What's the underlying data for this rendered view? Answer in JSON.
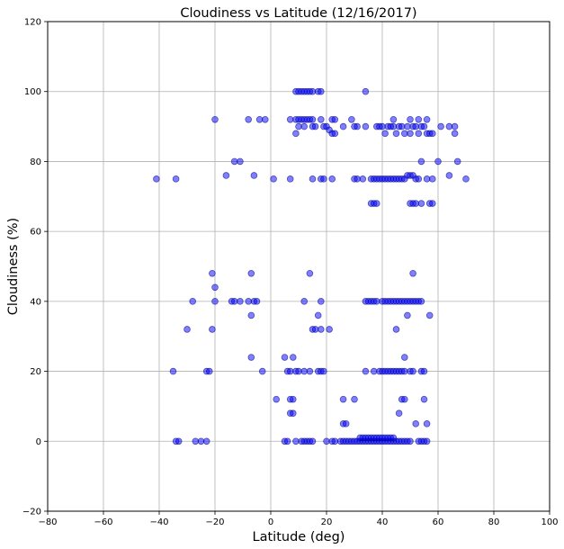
{
  "chart_data": {
    "type": "scatter",
    "title": "Cloudiness vs Latitude (12/16/2017)",
    "xlabel": "Latitude (deg)",
    "ylabel": "Cloudiness (%)",
    "xlim": [
      -80,
      100
    ],
    "ylim": [
      -20,
      120
    ],
    "xticks": [
      -80,
      -60,
      -40,
      -20,
      0,
      20,
      40,
      60,
      80,
      100
    ],
    "yticks": [
      -20,
      0,
      20,
      40,
      60,
      80,
      100,
      120
    ],
    "grid": true,
    "colors": {
      "marker_fill": "#0000ff",
      "marker_edge": "#00008b",
      "grid": "#b0b0b0",
      "axis": "#000000"
    },
    "series": [
      {
        "points": [
          [
            9,
            100
          ],
          [
            10,
            100
          ],
          [
            11,
            100
          ],
          [
            12,
            100
          ],
          [
            13,
            100
          ],
          [
            14,
            100
          ],
          [
            15,
            100
          ],
          [
            17,
            100
          ],
          [
            18,
            100
          ],
          [
            34,
            100
          ],
          [
            -20,
            92
          ],
          [
            -8,
            92
          ],
          [
            -4,
            92
          ],
          [
            -2,
            92
          ],
          [
            7,
            92
          ],
          [
            9,
            92
          ],
          [
            10,
            92
          ],
          [
            11,
            92
          ],
          [
            12,
            92
          ],
          [
            13,
            92
          ],
          [
            14,
            92
          ],
          [
            15,
            92
          ],
          [
            18,
            92
          ],
          [
            22,
            92
          ],
          [
            23,
            92
          ],
          [
            29,
            92
          ],
          [
            44,
            92
          ],
          [
            50,
            92
          ],
          [
            53,
            92
          ],
          [
            56,
            92
          ],
          [
            9,
            88
          ],
          [
            10,
            90
          ],
          [
            12,
            90
          ],
          [
            15,
            90
          ],
          [
            16,
            90
          ],
          [
            19,
            90
          ],
          [
            20,
            90
          ],
          [
            21,
            89
          ],
          [
            22,
            88
          ],
          [
            23,
            88
          ],
          [
            26,
            90
          ],
          [
            30,
            90
          ],
          [
            31,
            90
          ],
          [
            34,
            90
          ],
          [
            38,
            90
          ],
          [
            39,
            90
          ],
          [
            40,
            90
          ],
          [
            41,
            88
          ],
          [
            42,
            90
          ],
          [
            43,
            90
          ],
          [
            44,
            90
          ],
          [
            45,
            88
          ],
          [
            46,
            90
          ],
          [
            47,
            90
          ],
          [
            48,
            88
          ],
          [
            49,
            90
          ],
          [
            50,
            88
          ],
          [
            51,
            90
          ],
          [
            52,
            90
          ],
          [
            53,
            88
          ],
          [
            54,
            90
          ],
          [
            55,
            90
          ],
          [
            56,
            88
          ],
          [
            57,
            88
          ],
          [
            58,
            88
          ],
          [
            61,
            90
          ],
          [
            64,
            90
          ],
          [
            66,
            88
          ],
          [
            66,
            90
          ],
          [
            -16,
            76
          ],
          [
            -13,
            80
          ],
          [
            -11,
            80
          ],
          [
            -6,
            76
          ],
          [
            1,
            75
          ],
          [
            7,
            75
          ],
          [
            15,
            75
          ],
          [
            18,
            75
          ],
          [
            19,
            75
          ],
          [
            22,
            75
          ],
          [
            30,
            75
          ],
          [
            31,
            75
          ],
          [
            33,
            75
          ],
          [
            36,
            75
          ],
          [
            37,
            75
          ],
          [
            38,
            75
          ],
          [
            39,
            75
          ],
          [
            40,
            75
          ],
          [
            41,
            75
          ],
          [
            42,
            75
          ],
          [
            43,
            75
          ],
          [
            44,
            75
          ],
          [
            45,
            75
          ],
          [
            46,
            75
          ],
          [
            47,
            75
          ],
          [
            48,
            75
          ],
          [
            49,
            76
          ],
          [
            50,
            76
          ],
          [
            51,
            76
          ],
          [
            52,
            75
          ],
          [
            53,
            75
          ],
          [
            54,
            80
          ],
          [
            56,
            75
          ],
          [
            58,
            75
          ],
          [
            60,
            80
          ],
          [
            64,
            76
          ],
          [
            67,
            80
          ],
          [
            70,
            75
          ],
          [
            -41,
            75
          ],
          [
            -34,
            75
          ],
          [
            36,
            68
          ],
          [
            37,
            68
          ],
          [
            38,
            68
          ],
          [
            50,
            68
          ],
          [
            51,
            68
          ],
          [
            52,
            68
          ],
          [
            54,
            68
          ],
          [
            57,
            68
          ],
          [
            58,
            68
          ],
          [
            -21,
            48
          ],
          [
            -7,
            48
          ],
          [
            14,
            48
          ],
          [
            51,
            48
          ],
          [
            -20,
            44
          ],
          [
            -28,
            40
          ],
          [
            -20,
            40
          ],
          [
            -14,
            40
          ],
          [
            -13,
            40
          ],
          [
            -11,
            40
          ],
          [
            -8,
            40
          ],
          [
            -6,
            40
          ],
          [
            -5,
            40
          ],
          [
            12,
            40
          ],
          [
            18,
            40
          ],
          [
            34,
            40
          ],
          [
            35,
            40
          ],
          [
            36,
            40
          ],
          [
            37,
            40
          ],
          [
            38,
            40
          ],
          [
            40,
            40
          ],
          [
            41,
            40
          ],
          [
            42,
            40
          ],
          [
            43,
            40
          ],
          [
            44,
            40
          ],
          [
            45,
            40
          ],
          [
            46,
            40
          ],
          [
            47,
            40
          ],
          [
            48,
            40
          ],
          [
            49,
            40
          ],
          [
            50,
            40
          ],
          [
            51,
            40
          ],
          [
            52,
            40
          ],
          [
            53,
            40
          ],
          [
            54,
            40
          ],
          [
            -7,
            36
          ],
          [
            17,
            36
          ],
          [
            49,
            36
          ],
          [
            57,
            36
          ],
          [
            -30,
            32
          ],
          [
            -21,
            32
          ],
          [
            15,
            32
          ],
          [
            16,
            32
          ],
          [
            18,
            32
          ],
          [
            21,
            32
          ],
          [
            45,
            32
          ],
          [
            -7,
            24
          ],
          [
            5,
            24
          ],
          [
            8,
            24
          ],
          [
            48,
            24
          ],
          [
            -35,
            20
          ],
          [
            -23,
            20
          ],
          [
            -22,
            20
          ],
          [
            -3,
            20
          ],
          [
            6,
            20
          ],
          [
            7,
            20
          ],
          [
            9,
            20
          ],
          [
            10,
            20
          ],
          [
            12,
            20
          ],
          [
            14,
            20
          ],
          [
            17,
            20
          ],
          [
            18,
            20
          ],
          [
            19,
            20
          ],
          [
            34,
            20
          ],
          [
            37,
            20
          ],
          [
            39,
            20
          ],
          [
            40,
            20
          ],
          [
            41,
            20
          ],
          [
            42,
            20
          ],
          [
            43,
            20
          ],
          [
            44,
            20
          ],
          [
            45,
            20
          ],
          [
            46,
            20
          ],
          [
            47,
            20
          ],
          [
            48,
            20
          ],
          [
            50,
            20
          ],
          [
            51,
            20
          ],
          [
            54,
            20
          ],
          [
            55,
            20
          ],
          [
            2,
            12
          ],
          [
            7,
            12
          ],
          [
            8,
            12
          ],
          [
            26,
            12
          ],
          [
            30,
            12
          ],
          [
            47,
            12
          ],
          [
            48,
            12
          ],
          [
            55,
            12
          ],
          [
            7,
            8
          ],
          [
            8,
            8
          ],
          [
            46,
            8
          ],
          [
            26,
            5
          ],
          [
            27,
            5
          ],
          [
            52,
            5
          ],
          [
            56,
            5
          ],
          [
            -33,
            0
          ],
          [
            -34,
            0
          ],
          [
            -27,
            0
          ],
          [
            -25,
            0
          ],
          [
            -23,
            0
          ],
          [
            5,
            0
          ],
          [
            6,
            0
          ],
          [
            9,
            0
          ],
          [
            11,
            0
          ],
          [
            12,
            0
          ],
          [
            13,
            0
          ],
          [
            14,
            0
          ],
          [
            15,
            0
          ],
          [
            20,
            0
          ],
          [
            22,
            0
          ],
          [
            23,
            0
          ],
          [
            25,
            0
          ],
          [
            26,
            0
          ],
          [
            27,
            0
          ],
          [
            28,
            0
          ],
          [
            29,
            0
          ],
          [
            30,
            0
          ],
          [
            31,
            0
          ],
          [
            32,
            0
          ],
          [
            33,
            0
          ],
          [
            34,
            0
          ],
          [
            35,
            0
          ],
          [
            36,
            0
          ],
          [
            37,
            0
          ],
          [
            38,
            0
          ],
          [
            39,
            0
          ],
          [
            40,
            0
          ],
          [
            41,
            0
          ],
          [
            42,
            0
          ],
          [
            43,
            0
          ],
          [
            44,
            0
          ],
          [
            45,
            0
          ],
          [
            46,
            0
          ],
          [
            47,
            0
          ],
          [
            48,
            0
          ],
          [
            49,
            0
          ],
          [
            50,
            0
          ],
          [
            53,
            0
          ],
          [
            54,
            0
          ],
          [
            55,
            0
          ],
          [
            56,
            0
          ],
          [
            32,
            1
          ],
          [
            33,
            1
          ],
          [
            34,
            1
          ],
          [
            35,
            1
          ],
          [
            36,
            1
          ],
          [
            37,
            1
          ],
          [
            38,
            1
          ],
          [
            39,
            1
          ],
          [
            40,
            1
          ],
          [
            41,
            1
          ],
          [
            42,
            1
          ],
          [
            43,
            1
          ],
          [
            44,
            1
          ]
        ]
      }
    ]
  }
}
